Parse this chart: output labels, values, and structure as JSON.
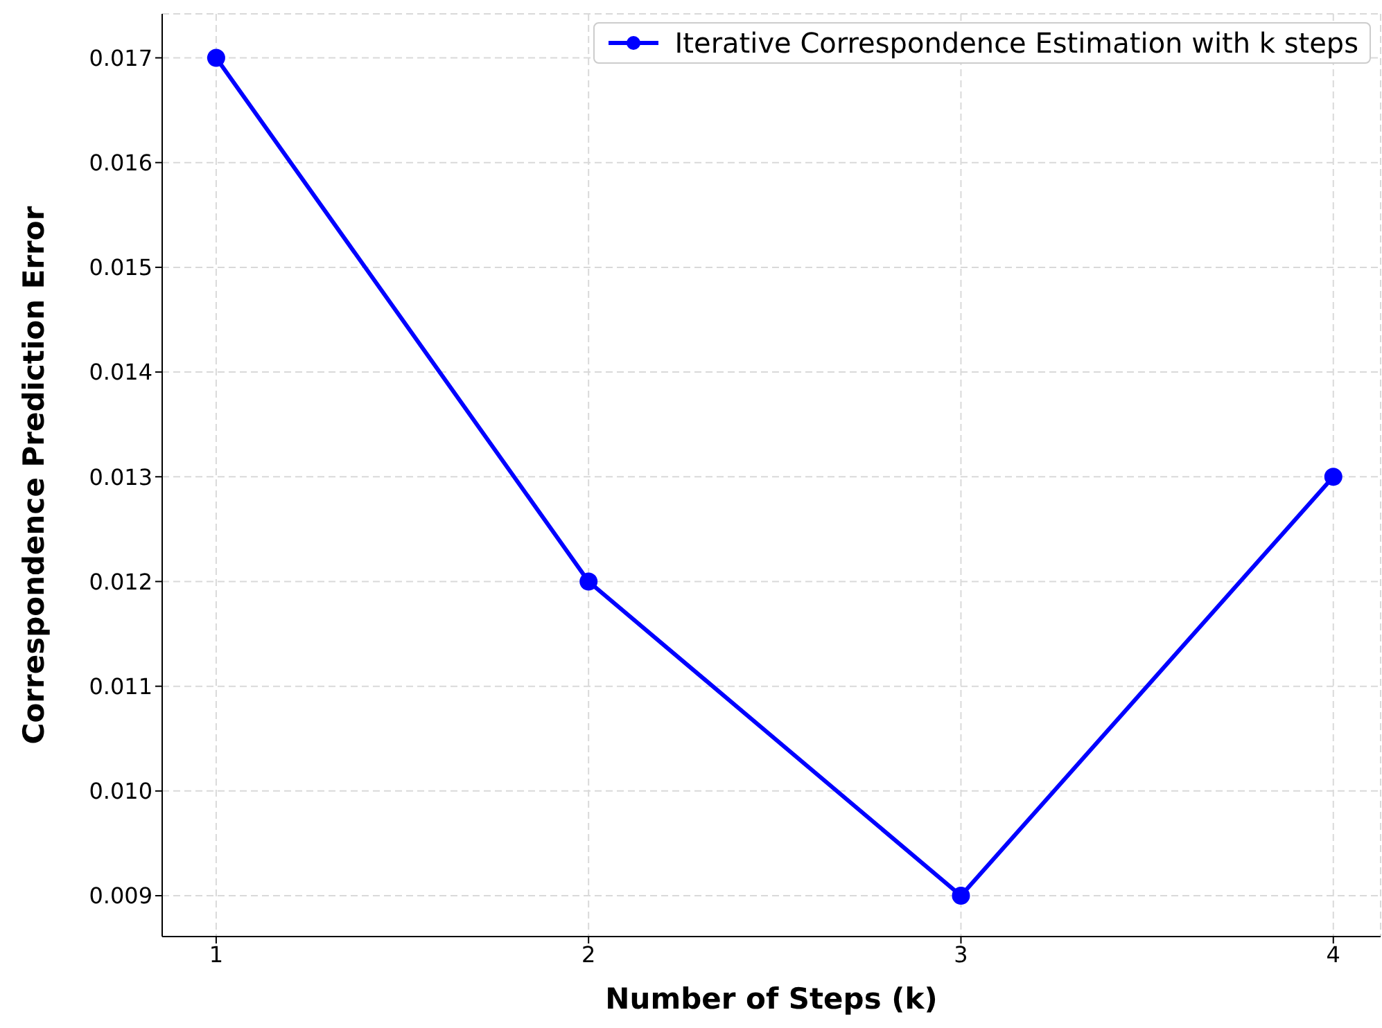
{
  "chart_data": {
    "type": "line",
    "xlabel": "Number of Steps (k)",
    "ylabel": "Correspondence Prediction Error",
    "x": [
      1,
      2,
      3,
      4
    ],
    "series": [
      {
        "name": "Iterative Correspondence Estimation with k steps",
        "color": "#0000ff",
        "values": [
          0.017,
          0.012,
          0.009,
          0.013
        ]
      }
    ],
    "xlim": [
      0.855,
      4.127
    ],
    "xticks": [
      1,
      2,
      3,
      4
    ],
    "ylim": [
      0.00861,
      0.01742
    ],
    "yticks": [
      0.009,
      {
        "value": 0.01,
        "label": "0.010"
      },
      0.011,
      0.012,
      0.013,
      0.014,
      0.015,
      0.016,
      0.017
    ],
    "grid": true,
    "legend": "top right",
    "marker": "circle",
    "line_style": "solid"
  }
}
